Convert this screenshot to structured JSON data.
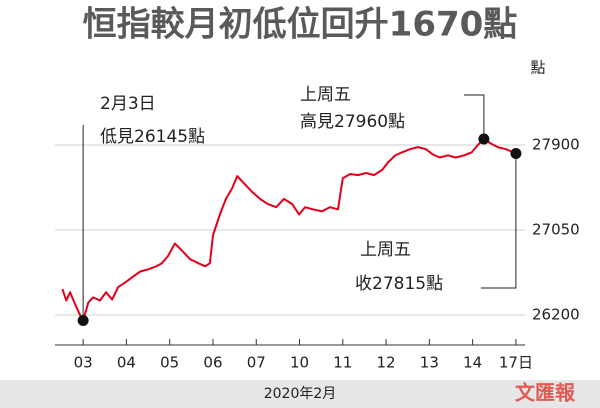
{
  "chart_data": {
    "type": "line",
    "title": "恒指較月初低位回升1670點",
    "y_unit": "點",
    "x_title": "2020年2月",
    "watermark": "文匯報",
    "x": [
      -0.48,
      -0.39,
      -0.3,
      -0.18,
      -0.07,
      0,
      0.12,
      0.23,
      0.39,
      0.53,
      0.67,
      0.81,
      0.99,
      1.15,
      1.32,
      1.5,
      1.69,
      1.82,
      1.96,
      2.12,
      2.29,
      2.47,
      2.66,
      2.82,
      2.93,
      3.0,
      3.16,
      3.3,
      3.44,
      3.56,
      3.72,
      3.9,
      4.09,
      4.27,
      4.46,
      4.64,
      4.83,
      4.99,
      5.13,
      5.31,
      5.52,
      5.7,
      5.89,
      6.0,
      6.17,
      6.35,
      6.54,
      6.72,
      6.91,
      7.04,
      7.21,
      7.37,
      7.55,
      7.74,
      7.92,
      8.08,
      8.24,
      8.43,
      8.61,
      8.8,
      8.98,
      9.12,
      9.26,
      9.4,
      9.58,
      9.77,
      10.0
    ],
    "series": [
      {
        "name": "恒指",
        "color": "#e3001b",
        "values": [
          26459,
          26345,
          26428,
          26303,
          26199,
          26145,
          26324,
          26376,
          26345,
          26428,
          26355,
          26479,
          26531,
          26583,
          26635,
          26656,
          26687,
          26718,
          26790,
          26915,
          26842,
          26759,
          26718,
          26687,
          26718,
          26998,
          27205,
          27361,
          27464,
          27589,
          27516,
          27433,
          27361,
          27309,
          27278,
          27361,
          27309,
          27205,
          27278,
          27257,
          27236,
          27278,
          27257,
          27568,
          27610,
          27599,
          27620,
          27599,
          27651,
          27724,
          27796,
          27827,
          27858,
          27879,
          27858,
          27806,
          27775,
          27796,
          27775,
          27796,
          27827,
          27900,
          27960,
          27920,
          27879,
          27858,
          27815
        ]
      }
    ],
    "xlim": [
      -0.65,
      10.21
    ],
    "xticks": [
      {
        "value": 0,
        "label": "03"
      },
      {
        "value": 1,
        "label": "04"
      },
      {
        "value": 2,
        "label": "05"
      },
      {
        "value": 3,
        "label": "06"
      },
      {
        "value": 4,
        "label": "07"
      },
      {
        "value": 5,
        "label": "10"
      },
      {
        "value": 6,
        "label": "11"
      },
      {
        "value": 7,
        "label": "12"
      },
      {
        "value": 8,
        "label": "13"
      },
      {
        "value": 9,
        "label": "14"
      },
      {
        "value": 10,
        "label": "17日"
      }
    ],
    "ylim": [
      25900,
      28500
    ],
    "yticks": [
      26200,
      27050,
      27900
    ],
    "grid": true,
    "annotations": [
      {
        "lines": [
          "2月3日",
          "低見26145點"
        ]
      },
      {
        "lines": [
          "上周五",
          "高見27960點"
        ]
      },
      {
        "lines": [
          "上周五",
          "收27815點"
        ]
      }
    ]
  }
}
